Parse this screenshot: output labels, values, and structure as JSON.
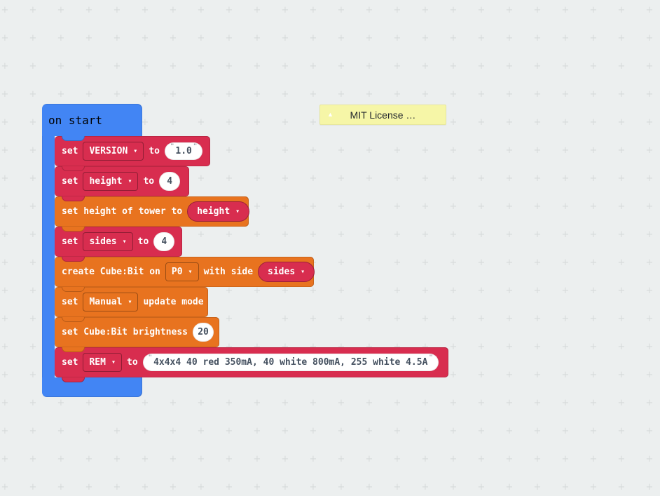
{
  "colors": {
    "bg": "#ECEFEF",
    "grid": "#D6DADA",
    "blue": "#4285F4",
    "red": "#D82D4F",
    "orange": "#E8731F",
    "comment-bg": "#F6F6A7",
    "field-text": "#44505F"
  },
  "icons": {
    "dropdown_caret": "▾",
    "comment_collapse": "▲",
    "quote": "\""
  },
  "comment": {
    "label": "MIT License …"
  },
  "on_start": {
    "label": "on start"
  },
  "blocks": {
    "set_version": {
      "set": "set",
      "variable": "VERSION",
      "to": "to",
      "value": "1.0"
    },
    "set_height": {
      "set": "set",
      "variable": "height",
      "to": "to",
      "value": "4"
    },
    "set_tower_height": {
      "label": "set height of tower to",
      "variable": "height"
    },
    "set_sides": {
      "set": "set",
      "variable": "sides",
      "to": "to",
      "value": "4"
    },
    "create_cubebit": {
      "label_start": "create Cube:Bit on",
      "pin": "P0",
      "label_mid": "with side",
      "variable": "sides"
    },
    "set_update_mode": {
      "set": "set",
      "mode": "Manual",
      "label": "update mode"
    },
    "set_brightness": {
      "label": "set Cube:Bit brightness",
      "value": "20"
    },
    "set_rem": {
      "set": "set",
      "variable": "REM",
      "to": "to",
      "value": "4x4x4 40 red 350mA, 40 white 800mA, 255 white 4.5A"
    }
  }
}
